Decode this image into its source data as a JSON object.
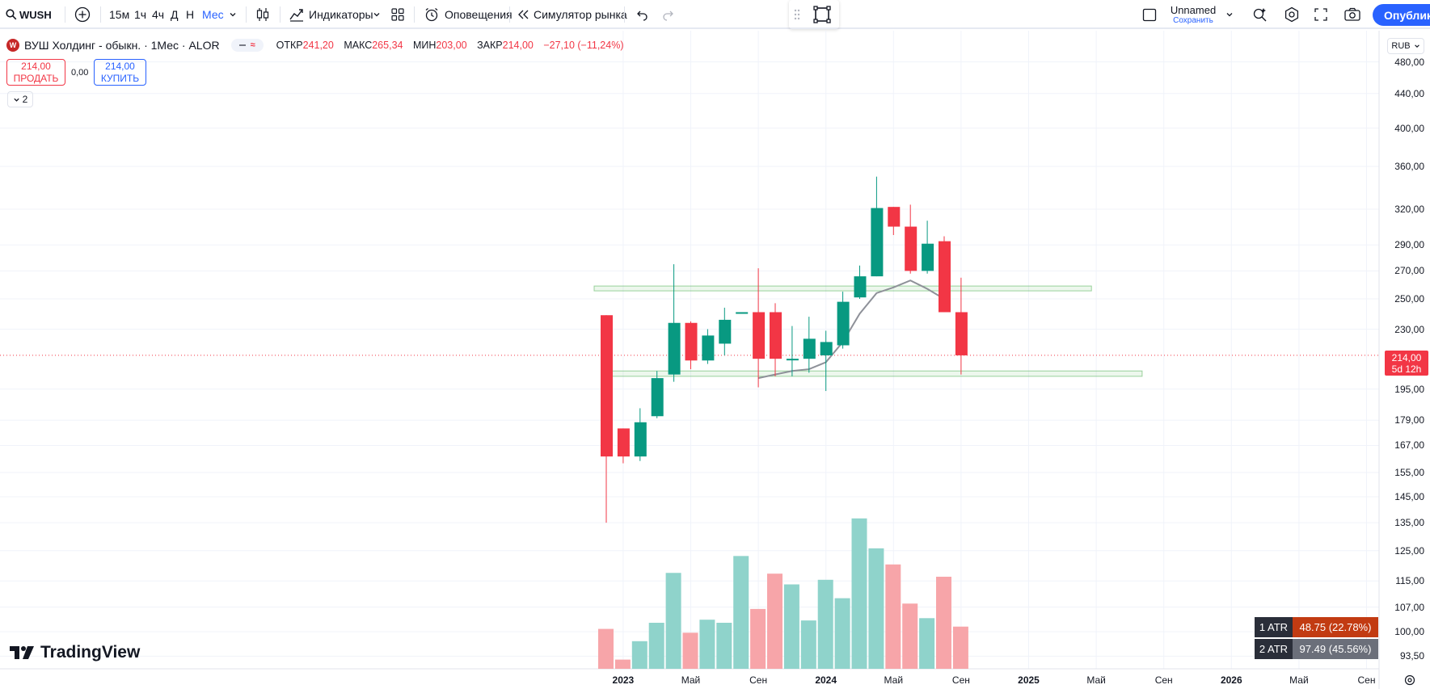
{
  "toolbar": {
    "symbol": "WUSH",
    "timeframes": [
      "15м",
      "1ч",
      "4ч",
      "Д",
      "Н",
      "Мес"
    ],
    "indicators_label": "Индикаторы",
    "alerts_label": "Оповещения",
    "replay_label": "Симулятор рынка",
    "layout_name": "Unnamed",
    "layout_save": "Сохранить",
    "publish_label": "Опубликовать"
  },
  "legend": {
    "logo_letter": "W",
    "title": "ВУШ Холдинг - обыкн. · 1Мес · ALOR",
    "open_label": "ОТКР",
    "open": "241,20",
    "high_label": "МАКС",
    "high": "265,34",
    "low_label": "МИН",
    "low": "203,00",
    "close_label": "ЗАКР",
    "close": "214,00",
    "change": "−27,10 (−11,24%)"
  },
  "trade": {
    "sell_price": "214,00",
    "sell_label": "ПРОДАТЬ",
    "spread": "0,00",
    "buy_price": "214,00",
    "buy_label": "КУПИТЬ"
  },
  "collapse_count": "2",
  "currency": "RUB",
  "current_price": "214,00",
  "current_countdown": "5d 12h",
  "price_ticks": [
    "480,00",
    "440,00",
    "400,00",
    "360,00",
    "320,00",
    "290,00",
    "270,00",
    "250,00",
    "230,00",
    "195,00",
    "179,00",
    "167,00",
    "155,00",
    "145,00",
    "135,00",
    "125,00",
    "115,00",
    "107,00",
    "100,00",
    "93,50"
  ],
  "time_ticks": [
    "2023",
    "Май",
    "Сен",
    "2024",
    "Май",
    "Сен",
    "2025",
    "Май",
    "Сен",
    "2026",
    "Май",
    "Сен"
  ],
  "atr": [
    {
      "name": "1 ATR",
      "value": "48.75 (22.78%)",
      "color": "#c23b12"
    },
    {
      "name": "2 ATR",
      "value": "97.49 (45.56%)",
      "color": "#6b6f7a"
    }
  ],
  "brand": "TradingView",
  "colors": {
    "up": "#089981",
    "down": "#f23645",
    "vol_up": "#8fd3cb",
    "vol_down": "#f7a5a9",
    "accent": "#2962ff",
    "zone": "#4caf50"
  },
  "chart_data": {
    "type": "candlestick",
    "interval": "1 month",
    "scale": "log",
    "candles": [
      {
        "date": "2022-12",
        "open": 239,
        "high": 239,
        "low": 135,
        "close": 162
      },
      {
        "date": "2023-01",
        "open": 175,
        "high": 175,
        "low": 159,
        "close": 162
      },
      {
        "date": "2023-02",
        "open": 162,
        "high": 185,
        "low": 160,
        "close": 178
      },
      {
        "date": "2023-03",
        "open": 181,
        "high": 205,
        "low": 180,
        "close": 201
      },
      {
        "date": "2023-04",
        "open": 203,
        "high": 275,
        "low": 199,
        "close": 234
      },
      {
        "date": "2023-05",
        "open": 234,
        "high": 235,
        "low": 206,
        "close": 211
      },
      {
        "date": "2023-06",
        "open": 211,
        "high": 230,
        "low": 209,
        "close": 226
      },
      {
        "date": "2023-07",
        "open": 221,
        "high": 244,
        "low": 214,
        "close": 236
      },
      {
        "date": "2023-08",
        "open": 241,
        "high": 241,
        "low": 241,
        "close": 241
      },
      {
        "date": "2023-09",
        "open": 241,
        "high": 272,
        "low": 196,
        "close": 212
      },
      {
        "date": "2023-10",
        "open": 241,
        "high": 247,
        "low": 202,
        "close": 212
      },
      {
        "date": "2023-11",
        "open": 212,
        "high": 232,
        "low": 202,
        "close": 212
      },
      {
        "date": "2023-12",
        "open": 212,
        "high": 238,
        "low": 204,
        "close": 224
      },
      {
        "date": "2024-01",
        "open": 214,
        "high": 229,
        "low": 194,
        "close": 222
      },
      {
        "date": "2024-02",
        "open": 220,
        "high": 255,
        "low": 218,
        "close": 248
      },
      {
        "date": "2024-03",
        "open": 251,
        "high": 274,
        "low": 250,
        "close": 266
      },
      {
        "date": "2024-04",
        "open": 266,
        "high": 350,
        "low": 266,
        "close": 321
      },
      {
        "date": "2024-05",
        "open": 322,
        "high": 322,
        "low": 298,
        "close": 305
      },
      {
        "date": "2024-06",
        "open": 305,
        "high": 324,
        "low": 268,
        "close": 270
      },
      {
        "date": "2024-07",
        "open": 270,
        "high": 310,
        "low": 268,
        "close": 291
      },
      {
        "date": "2024-08",
        "open": 293,
        "high": 297,
        "low": 241,
        "close": 241
      },
      {
        "date": "2024-09",
        "open": 241,
        "high": 265,
        "low": 203,
        "close": 214
      }
    ],
    "volume_relative": [
      0.52,
      0.12,
      0.36,
      0.6,
      1.25,
      0.47,
      0.64,
      0.6,
      1.47,
      0.78,
      1.24,
      1.1,
      0.63,
      1.16,
      0.92,
      1.96,
      1.57,
      1.36,
      0.85,
      0.66,
      1.2,
      0.55
    ],
    "sma": [
      null,
      null,
      null,
      null,
      null,
      null,
      null,
      null,
      null,
      201,
      203,
      205,
      206,
      210,
      222,
      240,
      254,
      258,
      263,
      257,
      250,
      null
    ],
    "zones": [
      {
        "from": "2022-12",
        "to": "2025-04",
        "low": 256,
        "high": 259
      },
      {
        "from": "2023-01",
        "to": "2025-07",
        "low": 202,
        "high": 205
      }
    ],
    "current_price": 214
  }
}
